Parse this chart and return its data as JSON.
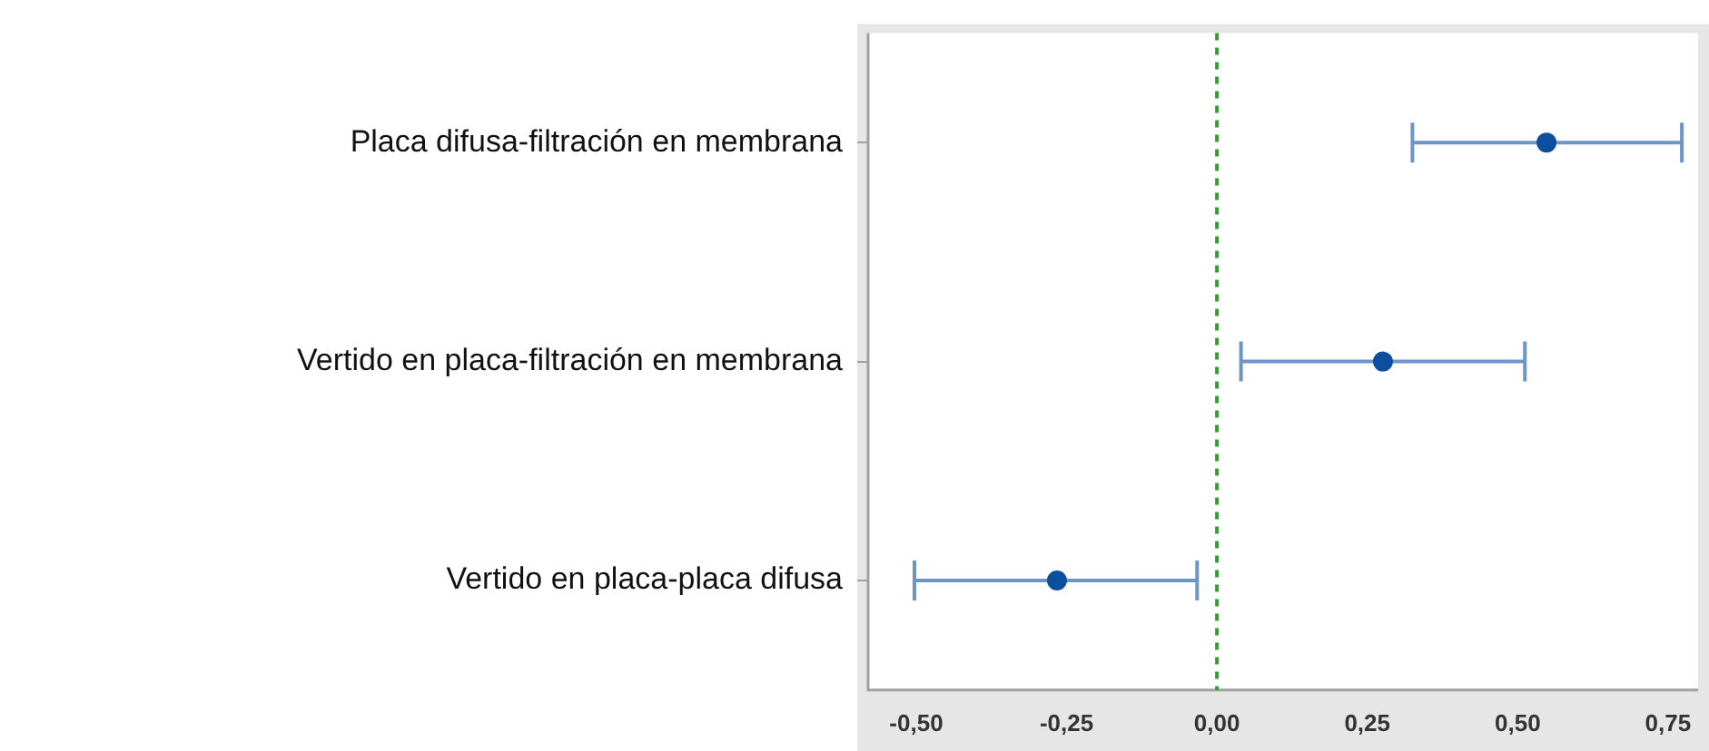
{
  "chart_data": {
    "type": "scatter",
    "categories": [
      "Placa difusa-filtración en membrana",
      "Vertido en placa-filtración en membrana",
      "Vertido en placa-placa difusa"
    ],
    "series": [
      {
        "color": "#0b4f9e",
        "values": [
          0.548,
          0.276,
          -0.266
        ],
        "errors": [
          [
            0.325,
            0.773
          ],
          [
            0.04,
            0.512
          ],
          [
            -0.503,
            -0.033
          ]
        ]
      }
    ],
    "orientation": "horizontal",
    "xlim": [
      -0.58,
      0.8
    ],
    "xticks": [
      {
        "value": -0.5,
        "label": "-0,50"
      },
      {
        "value": -0.25,
        "label": "-0,25"
      },
      {
        "value": 0,
        "label": "0,00"
      },
      {
        "value": 0.25,
        "label": "0,25"
      },
      {
        "value": 0.5,
        "label": "0,50"
      },
      {
        "value": 0.75,
        "label": "0,75"
      }
    ],
    "ref_lines": [
      {
        "axis": "x",
        "value": 0,
        "color": "#2ca02c",
        "line_style": "dashed"
      }
    ],
    "marker": "circle",
    "grid": false,
    "legend": false
  }
}
